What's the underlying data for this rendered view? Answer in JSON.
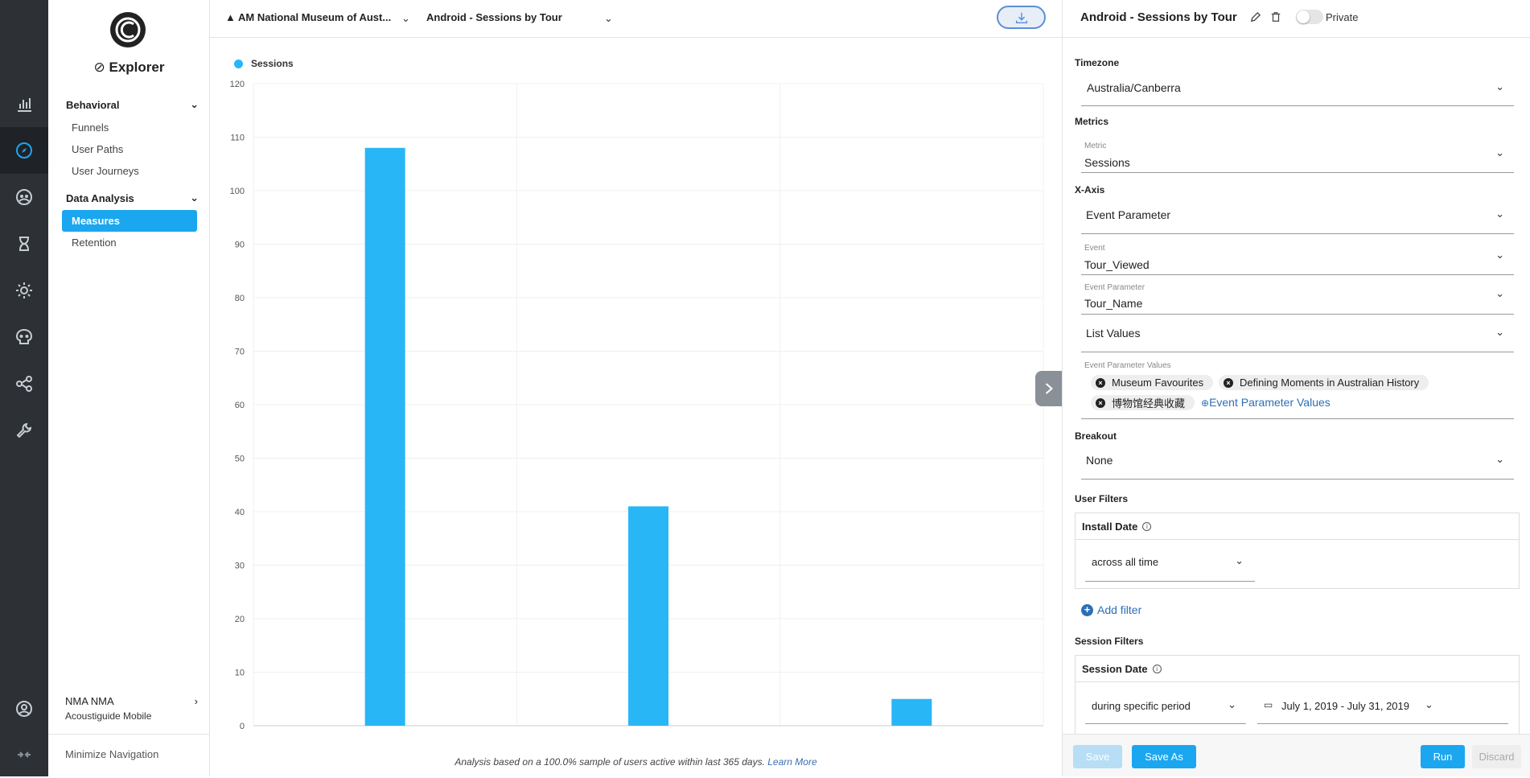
{
  "nav": {
    "app_title": "Explorer",
    "sections": [
      {
        "label": "Behavioral",
        "items": [
          "Funnels",
          "User Paths",
          "User Journeys"
        ]
      },
      {
        "label": "Data Analysis",
        "items": [
          "Measures",
          "Retention"
        ]
      }
    ],
    "active_item": "Measures",
    "account_name": "NMA NMA",
    "account_app": "Acoustiguide Mobile",
    "minimize_label": "Minimize Navigation"
  },
  "topbar": {
    "app_select": "AM National Museum of Aust...",
    "report_select": "Android - Sessions by Tour"
  },
  "chart_data": {
    "type": "bar",
    "categories": [
      "Museum Favourites",
      "Defining Moments in Australian History",
      "博物馆经典收藏"
    ],
    "series": [
      {
        "name": "Sessions",
        "values": [
          108,
          41,
          5
        ],
        "color": "#29b6f6"
      }
    ],
    "ylim": [
      0,
      120
    ],
    "yticks": [
      "0",
      "10",
      "20",
      "30",
      "40",
      "50",
      "60",
      "70",
      "80",
      "90",
      "100",
      "110",
      "120"
    ],
    "grid": true,
    "legend": "top-left"
  },
  "footnote": {
    "text": "Analysis based on a 100.0% sample of users active within last 365 days.",
    "link": "Learn More"
  },
  "panel": {
    "title": "Android - Sessions by Tour",
    "private_label": "Private",
    "timezone_label": "Timezone",
    "timezone_value": "Australia/Canberra",
    "metrics_label": "Metrics",
    "metric_small": "Metric",
    "metric_value": "Sessions",
    "xaxis_label": "X-Axis",
    "xaxis_value": "Event Parameter",
    "event_small": "Event",
    "event_value": "Tour_Viewed",
    "event_param_small": "Event Parameter",
    "event_param_value": "Tour_Name",
    "list_values": "List Values",
    "param_values_small": "Event Parameter Values",
    "chips": [
      "Museum Favourites",
      "Defining Moments in Australian History",
      "博物馆经典收藏"
    ],
    "add_values_label": "Event Parameter Values",
    "breakout_label": "Breakout",
    "breakout_value": "None",
    "user_filters_label": "User Filters",
    "install_date_label": "Install Date",
    "install_date_value": "across all time",
    "add_filter_label": "Add filter",
    "session_filters_label": "Session Filters",
    "session_date_label": "Session Date",
    "session_period_value": "during specific period",
    "date_range_value": "July 1, 2019 - July 31, 2019",
    "buttons": {
      "save": "Save",
      "save_as": "Save As",
      "run": "Run",
      "discard": "Discard"
    }
  },
  "colors": {
    "accent": "#1ba6f0",
    "bar": "#29b6f6",
    "rail": "#2d3136",
    "link": "#2c6fb5"
  }
}
